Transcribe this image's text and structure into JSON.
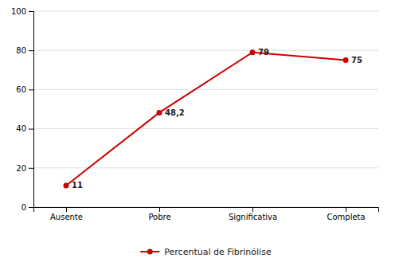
{
  "chart_data": {
    "type": "line",
    "categories": [
      "Ausente",
      "Pobre",
      "Significativa",
      "Completa"
    ],
    "series": [
      {
        "name": "Percentual de Fibrinólise",
        "color": "#cc0000",
        "marker": "circle",
        "values": [
          11,
          48.2,
          79,
          75
        ],
        "value_labels": [
          "11",
          "48,2",
          "79",
          "75"
        ]
      }
    ],
    "ylim": [
      0,
      100
    ],
    "yticks": [
      0,
      20,
      40,
      60,
      80,
      100
    ],
    "grid": true,
    "legend": "bottom",
    "data_labels": true
  }
}
